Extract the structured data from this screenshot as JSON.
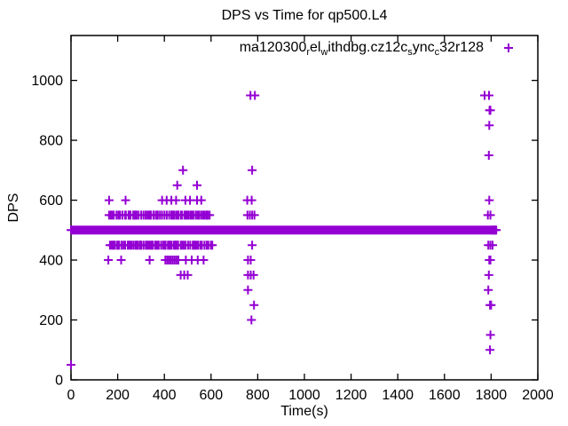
{
  "chart_data": {
    "type": "scatter",
    "title": "DPS vs Time for qp500.L4",
    "xlabel": "Time(s)",
    "ylabel": "DPS",
    "xlim": [
      0,
      2000
    ],
    "ylim": [
      0,
      1150
    ],
    "xticks": [
      0,
      200,
      400,
      600,
      800,
      1000,
      1200,
      1400,
      1600,
      1800,
      2000
    ],
    "yticks": [
      0,
      200,
      400,
      600,
      800,
      1000
    ],
    "grid": false,
    "legend_position": "top-right-inside",
    "axis_color": "#000000",
    "series": [
      {
        "name": "ma120300_rel_withdbg.cz12c_sync_c32r128",
        "label_segments": [
          {
            "text": "ma120300",
            "sub": false
          },
          {
            "text": "r",
            "sub": true
          },
          {
            "text": "el",
            "sub": false
          },
          {
            "text": "w",
            "sub": true
          },
          {
            "text": "ithdbg.cz12c",
            "sub": false
          },
          {
            "text": "s",
            "sub": true
          },
          {
            "text": "ync",
            "sub": false
          },
          {
            "text": "c",
            "sub": true
          },
          {
            "text": "32r128",
            "sub": false
          }
        ],
        "color": "#9400D3",
        "marker": "plus",
        "band": {
          "dps": 500,
          "t_start": 0,
          "t_end": 1818
        },
        "dense_rows": [
          {
            "dps": 550,
            "t_start": 163,
            "t_end": 600,
            "approx_step": 7
          },
          {
            "dps": 450,
            "t_start": 167,
            "t_end": 610,
            "approx_step": 7
          }
        ],
        "points": [
          [
            0,
            50
          ],
          [
            163,
            600
          ],
          [
            234,
            600
          ],
          [
            390,
            600
          ],
          [
            410,
            600
          ],
          [
            430,
            600
          ],
          [
            450,
            600
          ],
          [
            490,
            600
          ],
          [
            510,
            600
          ],
          [
            540,
            600
          ],
          [
            558,
            600
          ],
          [
            455,
            650
          ],
          [
            540,
            650
          ],
          [
            480,
            700
          ],
          [
            160,
            400
          ],
          [
            215,
            400
          ],
          [
            337,
            400
          ],
          [
            404,
            400
          ],
          [
            412,
            400
          ],
          [
            420,
            400
          ],
          [
            428,
            400
          ],
          [
            436,
            400
          ],
          [
            444,
            400
          ],
          [
            452,
            400
          ],
          [
            460,
            400
          ],
          [
            492,
            400
          ],
          [
            517,
            400
          ],
          [
            543,
            400
          ],
          [
            568,
            400
          ],
          [
            470,
            350
          ],
          [
            485,
            350
          ],
          [
            500,
            350
          ],
          [
            755,
            600
          ],
          [
            774,
            600
          ],
          [
            756,
            550
          ],
          [
            766,
            550
          ],
          [
            776,
            550
          ],
          [
            786,
            550
          ],
          [
            776,
            450
          ],
          [
            758,
            400
          ],
          [
            770,
            400
          ],
          [
            758,
            350
          ],
          [
            770,
            350
          ],
          [
            782,
            350
          ],
          [
            758,
            300
          ],
          [
            784,
            250
          ],
          [
            773,
            200
          ],
          [
            769,
            950
          ],
          [
            788,
            950
          ],
          [
            776,
            700
          ],
          [
            1772,
            950
          ],
          [
            1791,
            950
          ],
          [
            1793,
            900
          ],
          [
            1797,
            900
          ],
          [
            1792,
            850
          ],
          [
            1790,
            750
          ],
          [
            1792,
            600
          ],
          [
            1786,
            550
          ],
          [
            1797,
            550
          ],
          [
            1805,
            500
          ],
          [
            1813,
            500
          ],
          [
            1822,
            500
          ],
          [
            1788,
            450
          ],
          [
            1797,
            450
          ],
          [
            1806,
            450
          ],
          [
            1792,
            400
          ],
          [
            1797,
            400
          ],
          [
            1790,
            350
          ],
          [
            1788,
            300
          ],
          [
            1795,
            250
          ],
          [
            1800,
            250
          ],
          [
            1797,
            150
          ],
          [
            1795,
            100
          ]
        ]
      }
    ]
  }
}
